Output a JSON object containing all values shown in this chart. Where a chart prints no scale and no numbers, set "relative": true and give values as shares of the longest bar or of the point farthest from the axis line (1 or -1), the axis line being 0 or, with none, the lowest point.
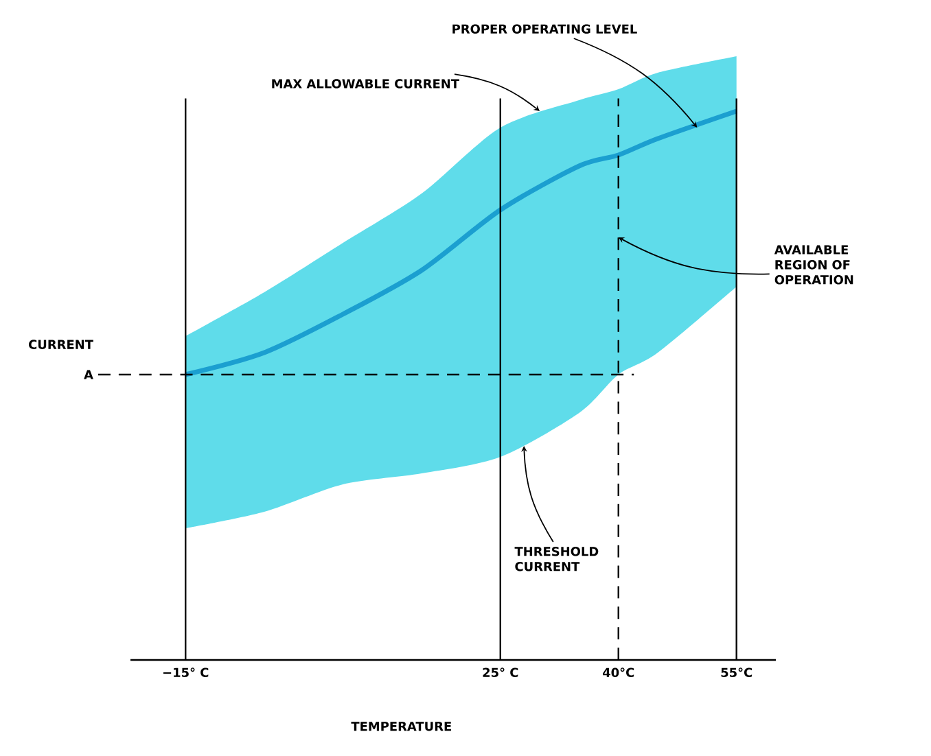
{
  "chart_data": {
    "type": "line",
    "relative": true,
    "xlabel": "TEMPERATURE",
    "ylabel": "CURRENT",
    "x": [
      -15,
      -5,
      5,
      15,
      25,
      35,
      40,
      45,
      55
    ],
    "xlim": [
      -22,
      60
    ],
    "xticks": [
      {
        "value": -15,
        "label": "−15° C"
      },
      {
        "value": 25,
        "label": "25° C"
      },
      {
        "value": 40,
        "label": "40°C"
      },
      {
        "value": 55,
        "label": "55°C"
      }
    ],
    "series": [
      {
        "color": "#1b9fd0",
        "values": [
          0.52,
          0.56,
          0.63,
          0.71,
          0.82,
          0.9,
          0.92,
          0.95,
          1.0
        ],
        "lower": [
          0.24,
          0.27,
          0.32,
          0.34,
          0.37,
          0.45,
          0.52,
          0.56,
          0.68
        ],
        "upper": [
          0.59,
          0.67,
          0.76,
          0.85,
          0.97,
          1.02,
          1.04,
          1.07,
          1.1
        ]
      }
    ],
    "ref_lines": [
      {
        "axis": "x",
        "value": -15,
        "line_style": "solid"
      },
      {
        "axis": "x",
        "value": 25,
        "line_style": "solid"
      },
      {
        "axis": "x",
        "value": 55,
        "line_style": "solid"
      },
      {
        "axis": "x",
        "value": 40,
        "line_style": "dashed"
      },
      {
        "axis": "y",
        "value": 0.52,
        "label": "A",
        "line_style": "dashed"
      }
    ],
    "annotations": [
      {
        "text": "MAX ALLOWABLE CURRENT",
        "x": 30,
        "y": 1.0
      },
      {
        "text": "PROPER OPERATING LEVEL",
        "x": 50,
        "y": 0.97
      },
      {
        "text": "AVAILABLE REGION OF OPERATION",
        "x": 40,
        "y": 0.77
      },
      {
        "text": "THRESHOLD CURRENT",
        "x": 28,
        "y": 0.39
      }
    ],
    "grid": false
  }
}
